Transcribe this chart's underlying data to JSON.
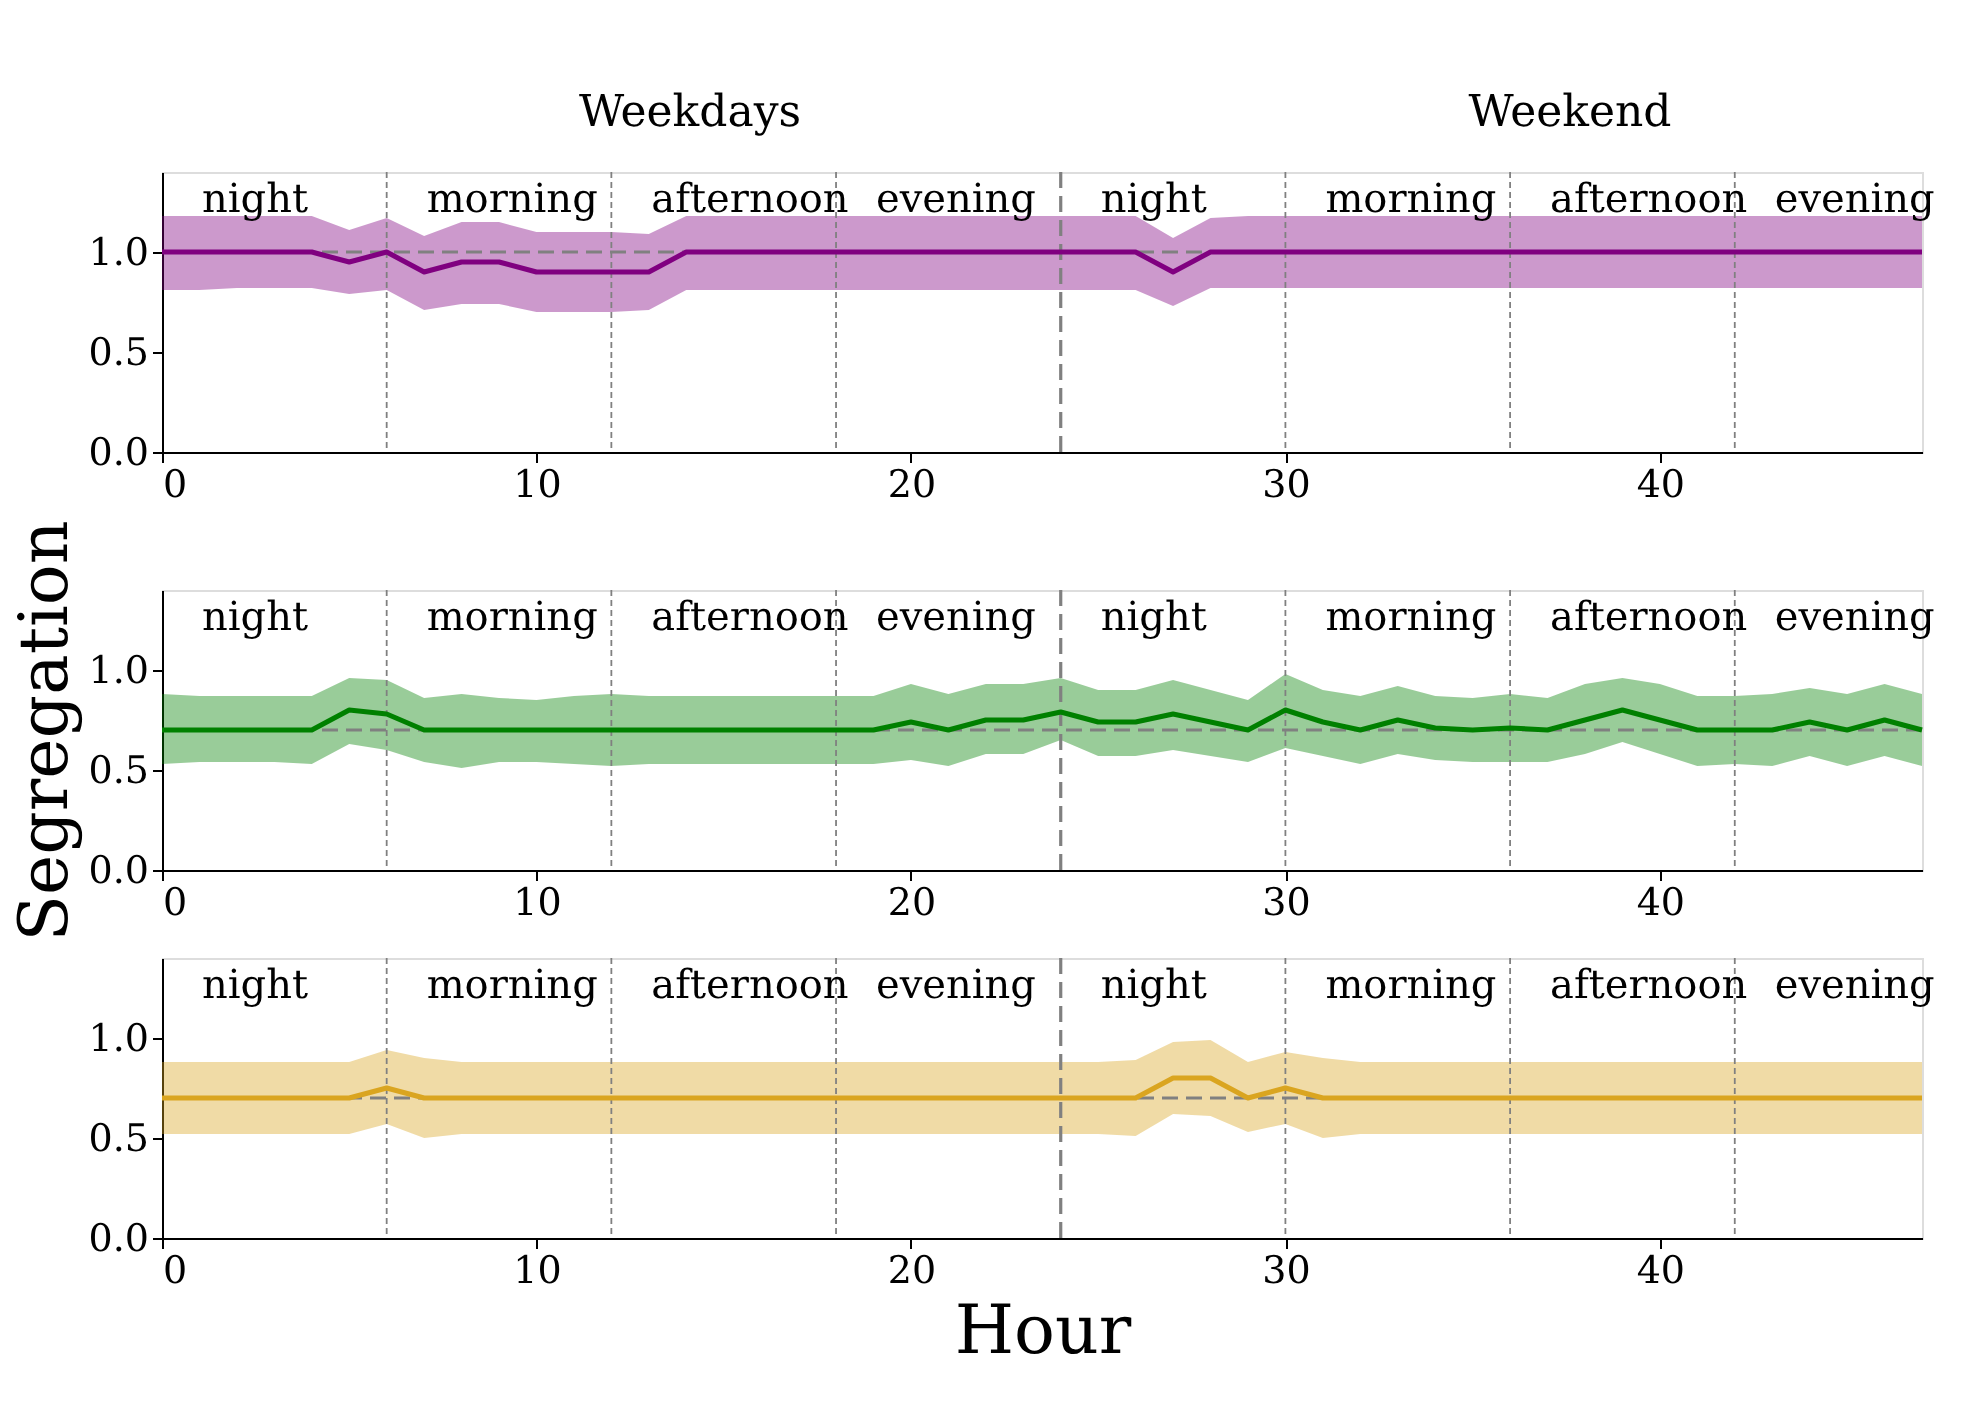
{
  "chart_data": [
    {
      "type": "line",
      "annotations": [
        "night",
        "morning",
        "afternoon",
        "evening",
        "night",
        "morning",
        "afternoon",
        "evening",
        "Weekdays",
        "Weekend"
      ],
      "x": [
        0,
        1,
        2,
        3,
        4,
        5,
        6,
        7,
        8,
        9,
        10,
        11,
        12,
        13,
        14,
        15,
        16,
        17,
        18,
        19,
        20,
        21,
        22,
        23,
        24,
        25,
        26,
        27,
        28,
        29,
        30,
        31,
        32,
        33,
        34,
        35,
        36,
        37,
        38,
        39,
        40,
        41,
        42,
        43,
        44,
        45,
        46,
        47
      ],
      "series": [
        {
          "color": "#800080",
          "values": [
            1.0,
            1.0,
            1.0,
            1.0,
            1.0,
            0.95,
            1.0,
            0.9,
            0.95,
            0.95,
            0.9,
            0.9,
            0.9,
            0.9,
            1.0,
            1.0,
            1.0,
            1.0,
            1.0,
            1.0,
            1.0,
            1.0,
            1.0,
            1.0,
            1.0,
            1.0,
            1.0,
            0.9,
            1.0,
            1.0,
            1.0,
            1.0,
            1.0,
            1.0,
            1.0,
            1.0,
            1.0,
            1.0,
            1.0,
            1.0,
            1.0,
            1.0,
            1.0,
            1.0,
            1.0,
            1.0,
            1.0,
            1.0
          ],
          "upper": [
            1.18,
            1.18,
            1.18,
            1.18,
            1.18,
            1.11,
            1.17,
            1.08,
            1.15,
            1.15,
            1.1,
            1.1,
            1.1,
            1.09,
            1.18,
            1.18,
            1.18,
            1.18,
            1.18,
            1.18,
            1.18,
            1.18,
            1.18,
            1.18,
            1.18,
            1.18,
            1.18,
            1.07,
            1.17,
            1.18,
            1.18,
            1.18,
            1.18,
            1.18,
            1.18,
            1.18,
            1.18,
            1.18,
            1.18,
            1.18,
            1.18,
            1.18,
            1.18,
            1.18,
            1.18,
            1.18,
            1.18,
            1.18
          ],
          "lower": [
            0.81,
            0.81,
            0.82,
            0.82,
            0.82,
            0.79,
            0.81,
            0.71,
            0.74,
            0.74,
            0.7,
            0.7,
            0.7,
            0.71,
            0.81,
            0.81,
            0.81,
            0.81,
            0.81,
            0.81,
            0.81,
            0.81,
            0.81,
            0.81,
            0.81,
            0.81,
            0.81,
            0.73,
            0.82,
            0.82,
            0.82,
            0.82,
            0.82,
            0.82,
            0.82,
            0.82,
            0.82,
            0.82,
            0.82,
            0.82,
            0.82,
            0.82,
            0.82,
            0.82,
            0.82,
            0.82,
            0.82,
            0.82
          ]
        }
      ],
      "ref_lines": [
        {
          "axis": "y",
          "value": 1.0,
          "line_style": "dashed",
          "color": "#808080"
        },
        {
          "axis": "x",
          "value": 6,
          "line_style": "dotted",
          "color": "#808080"
        },
        {
          "axis": "x",
          "value": 12,
          "line_style": "dotted",
          "color": "#808080"
        },
        {
          "axis": "x",
          "value": 18,
          "line_style": "dotted",
          "color": "#808080"
        },
        {
          "axis": "x",
          "value": 24,
          "line_style": "dashed",
          "color": "#808080"
        },
        {
          "axis": "x",
          "value": 30,
          "line_style": "dotted",
          "color": "#808080"
        },
        {
          "axis": "x",
          "value": 36,
          "line_style": "dotted",
          "color": "#808080"
        },
        {
          "axis": "x",
          "value": 42,
          "line_style": "dotted",
          "color": "#808080"
        }
      ],
      "xlim": [
        0,
        47
      ],
      "xticks": [
        0,
        10,
        20,
        30,
        40
      ],
      "ylim": [
        0,
        1.4
      ],
      "yticks": [
        {
          "value": 0,
          "label": "0.0"
        },
        {
          "value": 0.5,
          "label": "0.5"
        },
        {
          "value": 1.0,
          "label": "1.0"
        }
      ],
      "grid": false,
      "legend": false,
      "line_style": "solid"
    },
    {
      "type": "line",
      "ylabel": "Segregation",
      "annotations": [
        "night",
        "morning",
        "afternoon",
        "evening",
        "night",
        "morning",
        "afternoon",
        "evening"
      ],
      "x": [
        0,
        1,
        2,
        3,
        4,
        5,
        6,
        7,
        8,
        9,
        10,
        11,
        12,
        13,
        14,
        15,
        16,
        17,
        18,
        19,
        20,
        21,
        22,
        23,
        24,
        25,
        26,
        27,
        28,
        29,
        30,
        31,
        32,
        33,
        34,
        35,
        36,
        37,
        38,
        39,
        40,
        41,
        42,
        43,
        44,
        45,
        46,
        47
      ],
      "series": [
        {
          "color": "#008000",
          "values": [
            0.7,
            0.7,
            0.7,
            0.7,
            0.7,
            0.8,
            0.78,
            0.7,
            0.7,
            0.7,
            0.7,
            0.7,
            0.7,
            0.7,
            0.7,
            0.7,
            0.7,
            0.7,
            0.7,
            0.7,
            0.74,
            0.7,
            0.75,
            0.75,
            0.79,
            0.74,
            0.74,
            0.78,
            0.74,
            0.7,
            0.8,
            0.74,
            0.7,
            0.75,
            0.71,
            0.7,
            0.71,
            0.7,
            0.75,
            0.8,
            0.75,
            0.7,
            0.7,
            0.7,
            0.74,
            0.7,
            0.75,
            0.7
          ],
          "upper": [
            0.88,
            0.87,
            0.87,
            0.87,
            0.87,
            0.96,
            0.95,
            0.86,
            0.88,
            0.86,
            0.85,
            0.87,
            0.88,
            0.87,
            0.87,
            0.87,
            0.87,
            0.87,
            0.87,
            0.87,
            0.93,
            0.88,
            0.93,
            0.93,
            0.96,
            0.9,
            0.9,
            0.95,
            0.9,
            0.85,
            0.98,
            0.9,
            0.87,
            0.92,
            0.87,
            0.86,
            0.88,
            0.86,
            0.93,
            0.96,
            0.93,
            0.87,
            0.87,
            0.88,
            0.91,
            0.88,
            0.93,
            0.88
          ],
          "lower": [
            0.53,
            0.54,
            0.54,
            0.54,
            0.53,
            0.63,
            0.6,
            0.54,
            0.51,
            0.54,
            0.54,
            0.53,
            0.52,
            0.53,
            0.53,
            0.53,
            0.53,
            0.53,
            0.53,
            0.53,
            0.55,
            0.52,
            0.58,
            0.58,
            0.65,
            0.57,
            0.57,
            0.6,
            0.57,
            0.54,
            0.61,
            0.57,
            0.53,
            0.58,
            0.55,
            0.54,
            0.54,
            0.54,
            0.58,
            0.64,
            0.58,
            0.52,
            0.53,
            0.52,
            0.57,
            0.52,
            0.57,
            0.52
          ]
        }
      ],
      "ref_lines": [
        {
          "axis": "y",
          "value": 0.7,
          "line_style": "dashed",
          "color": "#808080"
        },
        {
          "axis": "x",
          "value": 6,
          "line_style": "dotted",
          "color": "#808080"
        },
        {
          "axis": "x",
          "value": 12,
          "line_style": "dotted",
          "color": "#808080"
        },
        {
          "axis": "x",
          "value": 18,
          "line_style": "dotted",
          "color": "#808080"
        },
        {
          "axis": "x",
          "value": 24,
          "line_style": "dashed",
          "color": "#808080"
        },
        {
          "axis": "x",
          "value": 30,
          "line_style": "dotted",
          "color": "#808080"
        },
        {
          "axis": "x",
          "value": 36,
          "line_style": "dotted",
          "color": "#808080"
        },
        {
          "axis": "x",
          "value": 42,
          "line_style": "dotted",
          "color": "#808080"
        }
      ],
      "xlim": [
        0,
        47
      ],
      "xticks": [
        0,
        10,
        20,
        30,
        40
      ],
      "ylim": [
        0,
        1.4
      ],
      "yticks": [
        {
          "value": 0,
          "label": "0.0"
        },
        {
          "value": 0.5,
          "label": "0.5"
        },
        {
          "value": 1.0,
          "label": "1.0"
        }
      ],
      "grid": false,
      "legend": false,
      "line_style": "solid"
    },
    {
      "type": "line",
      "xlabel": "Hour",
      "annotations": [
        "night",
        "morning",
        "afternoon",
        "evening",
        "night",
        "morning",
        "afternoon",
        "evening"
      ],
      "x": [
        0,
        1,
        2,
        3,
        4,
        5,
        6,
        7,
        8,
        9,
        10,
        11,
        12,
        13,
        14,
        15,
        16,
        17,
        18,
        19,
        20,
        21,
        22,
        23,
        24,
        25,
        26,
        27,
        28,
        29,
        30,
        31,
        32,
        33,
        34,
        35,
        36,
        37,
        38,
        39,
        40,
        41,
        42,
        43,
        44,
        45,
        46,
        47
      ],
      "series": [
        {
          "color": "#daa520",
          "values": [
            0.7,
            0.7,
            0.7,
            0.7,
            0.7,
            0.7,
            0.75,
            0.7,
            0.7,
            0.7,
            0.7,
            0.7,
            0.7,
            0.7,
            0.7,
            0.7,
            0.7,
            0.7,
            0.7,
            0.7,
            0.7,
            0.7,
            0.7,
            0.7,
            0.7,
            0.7,
            0.7,
            0.8,
            0.8,
            0.7,
            0.75,
            0.7,
            0.7,
            0.7,
            0.7,
            0.7,
            0.7,
            0.7,
            0.7,
            0.7,
            0.7,
            0.7,
            0.7,
            0.7,
            0.7,
            0.7,
            0.7,
            0.7
          ],
          "upper": [
            0.88,
            0.88,
            0.88,
            0.88,
            0.88,
            0.88,
            0.94,
            0.9,
            0.88,
            0.88,
            0.88,
            0.88,
            0.88,
            0.88,
            0.88,
            0.88,
            0.88,
            0.88,
            0.88,
            0.88,
            0.88,
            0.88,
            0.88,
            0.88,
            0.88,
            0.88,
            0.89,
            0.98,
            0.99,
            0.88,
            0.93,
            0.9,
            0.88,
            0.88,
            0.88,
            0.88,
            0.88,
            0.88,
            0.88,
            0.88,
            0.88,
            0.88,
            0.88,
            0.88,
            0.88,
            0.88,
            0.88,
            0.88
          ],
          "lower": [
            0.52,
            0.52,
            0.52,
            0.52,
            0.52,
            0.52,
            0.57,
            0.5,
            0.52,
            0.52,
            0.52,
            0.52,
            0.52,
            0.52,
            0.52,
            0.52,
            0.52,
            0.52,
            0.52,
            0.52,
            0.52,
            0.52,
            0.52,
            0.52,
            0.52,
            0.52,
            0.51,
            0.62,
            0.61,
            0.53,
            0.57,
            0.5,
            0.52,
            0.52,
            0.52,
            0.52,
            0.52,
            0.52,
            0.52,
            0.52,
            0.52,
            0.52,
            0.52,
            0.52,
            0.52,
            0.52,
            0.52,
            0.52
          ]
        }
      ],
      "ref_lines": [
        {
          "axis": "y",
          "value": 0.7,
          "line_style": "dashed",
          "color": "#808080"
        },
        {
          "axis": "x",
          "value": 6,
          "line_style": "dotted",
          "color": "#808080"
        },
        {
          "axis": "x",
          "value": 12,
          "line_style": "dotted",
          "color": "#808080"
        },
        {
          "axis": "x",
          "value": 18,
          "line_style": "dotted",
          "color": "#808080"
        },
        {
          "axis": "x",
          "value": 24,
          "line_style": "dashed",
          "color": "#808080"
        },
        {
          "axis": "x",
          "value": 30,
          "line_style": "dotted",
          "color": "#808080"
        },
        {
          "axis": "x",
          "value": 36,
          "line_style": "dotted",
          "color": "#808080"
        },
        {
          "axis": "x",
          "value": 42,
          "line_style": "dotted",
          "color": "#808080"
        }
      ],
      "xlim": [
        0,
        47
      ],
      "xticks": [
        0,
        10,
        20,
        30,
        40
      ],
      "ylim": [
        0,
        1.4
      ],
      "yticks": [
        {
          "value": 0,
          "label": "0.0"
        },
        {
          "value": 0.5,
          "label": "0.5"
        },
        {
          "value": 1.0,
          "label": "1.0"
        }
      ],
      "grid": false,
      "legend": false,
      "line_style": "solid"
    }
  ]
}
